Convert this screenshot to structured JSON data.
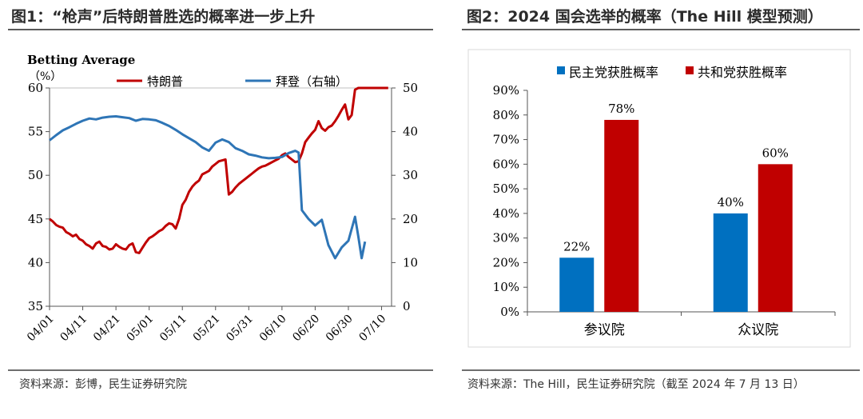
{
  "left": {
    "title": "图1：“枪声”后特朗普胜选的概率进一步上升",
    "source": "资料来源：彭博，民生证券研究院"
  },
  "right": {
    "title": "图2：2024 国会选举的概率（The Hill 模型预测）",
    "source": "资料来源：The Hill，民生证券研究院（截至 2024 年 7 月 13 日）"
  },
  "chart_data": [
    {
      "type": "line",
      "title": "Betting Average",
      "ylabel": "（%）",
      "ylim": [
        35,
        60
      ],
      "y2lim": [
        0,
        50
      ],
      "yticks": [
        "35",
        "40",
        "45",
        "50",
        "55",
        "60"
      ],
      "y2ticks": [
        "0",
        "10",
        "20",
        "30",
        "40",
        "50"
      ],
      "xticks": [
        "04/01",
        "04/11",
        "04/21",
        "05/01",
        "05/11",
        "05/21",
        "05/31",
        "06/10",
        "06/20",
        "06/30",
        "07/10"
      ],
      "xrange_days": [
        0,
        103
      ],
      "legend_position": "top",
      "series": [
        {
          "name": "特朗普",
          "axis": "left",
          "color": "#c00000",
          "x": [
            0,
            1,
            2,
            3,
            4,
            5,
            6,
            7,
            8,
            9,
            10,
            11,
            12,
            13,
            14,
            15,
            16,
            17,
            18,
            19,
            20,
            21,
            22,
            23,
            24,
            25,
            26,
            27,
            28,
            29,
            30,
            31,
            32,
            33,
            34,
            35,
            36,
            37,
            38,
            39,
            40,
            41,
            42,
            43,
            44,
            45,
            46,
            47,
            48,
            49,
            50,
            51,
            52,
            53,
            54,
            55,
            56,
            57,
            58,
            59,
            60,
            61,
            62,
            63,
            64,
            65,
            66,
            67,
            68,
            69,
            70,
            71,
            72,
            73,
            74,
            75,
            76,
            77,
            78,
            79,
            80,
            81,
            82,
            83,
            84,
            85,
            86,
            87,
            88,
            89,
            90,
            91,
            92,
            93,
            94,
            95,
            96,
            97,
            98,
            99,
            100,
            101,
            102
          ],
          "values": [
            45.0,
            44.7,
            44.3,
            44.1,
            44.0,
            43.5,
            43.3,
            43.0,
            43.2,
            42.7,
            42.5,
            42.1,
            41.9,
            41.6,
            42.2,
            42.4,
            41.9,
            41.8,
            41.5,
            41.6,
            42.1,
            41.8,
            41.6,
            41.5,
            42.0,
            42.2,
            41.2,
            41.1,
            41.7,
            42.3,
            42.8,
            43.0,
            43.3,
            43.6,
            43.8,
            44.2,
            44.5,
            44.4,
            43.9,
            45.0,
            46.6,
            47.2,
            48.1,
            48.7,
            49.1,
            49.4,
            50.1,
            50.3,
            50.5,
            51.0,
            51.3,
            51.6,
            51.7,
            51.8,
            47.8,
            48.1,
            48.6,
            49.0,
            49.3,
            49.6,
            49.9,
            50.2,
            50.5,
            50.8,
            51.0,
            51.1,
            51.3,
            51.5,
            51.7,
            51.9,
            52.3,
            52.5,
            52.1,
            51.8,
            51.5,
            51.6,
            52.5,
            53.8,
            54.3,
            54.8,
            55.2,
            56.2,
            55.4,
            55.1,
            55.5,
            55.7,
            56.2,
            56.8,
            57.5,
            58.1,
            56.4,
            56.9,
            59.8,
            60.0,
            60.0,
            60.0,
            60.0,
            60.0,
            60.0,
            60.0,
            60.0,
            60.0,
            60.0
          ]
        },
        {
          "name": "拜登（右轴）",
          "axis": "right",
          "color": "#2e75b6",
          "x": [
            0,
            2,
            4,
            6,
            8,
            10,
            12,
            14,
            16,
            18,
            20,
            22,
            24,
            26,
            28,
            30,
            32,
            34,
            36,
            38,
            40,
            42,
            44,
            46,
            48,
            50,
            52,
            54,
            56,
            58,
            60,
            62,
            64,
            66,
            68,
            70,
            72,
            74,
            75,
            76,
            78,
            80,
            82,
            84,
            86,
            88,
            90,
            92,
            93,
            94,
            95
          ],
          "values": [
            38.0,
            39.2,
            40.3,
            41.0,
            41.8,
            42.5,
            43.0,
            42.8,
            43.2,
            43.4,
            43.5,
            43.3,
            43.1,
            42.5,
            42.9,
            42.8,
            42.6,
            42.0,
            41.3,
            40.4,
            39.4,
            38.5,
            37.6,
            36.4,
            35.6,
            37.5,
            38.2,
            37.6,
            36.2,
            35.6,
            34.8,
            34.5,
            34.1,
            33.9,
            34.0,
            34.2,
            35.1,
            35.6,
            35.2,
            22.0,
            20.0,
            18.5,
            19.8,
            14.0,
            11.0,
            13.5,
            15.0,
            20.5,
            16.0,
            11.0,
            14.8
          ]
        }
      ]
    },
    {
      "type": "bar",
      "categories": [
        "参议院",
        "众议院"
      ],
      "yticks": [
        "0%",
        "10%",
        "20%",
        "30%",
        "40%",
        "50%",
        "60%",
        "70%",
        "80%",
        "90%"
      ],
      "ylim": [
        0,
        90
      ],
      "legend_position": "top",
      "series": [
        {
          "name": "民主党获胜概率",
          "color": "#0070c0",
          "values": [
            22,
            40
          ],
          "labels": [
            "22%",
            "40%"
          ]
        },
        {
          "name": "共和党获胜概率",
          "color": "#c00000",
          "values": [
            78,
            60
          ],
          "labels": [
            "78%",
            "60%"
          ]
        }
      ]
    }
  ]
}
